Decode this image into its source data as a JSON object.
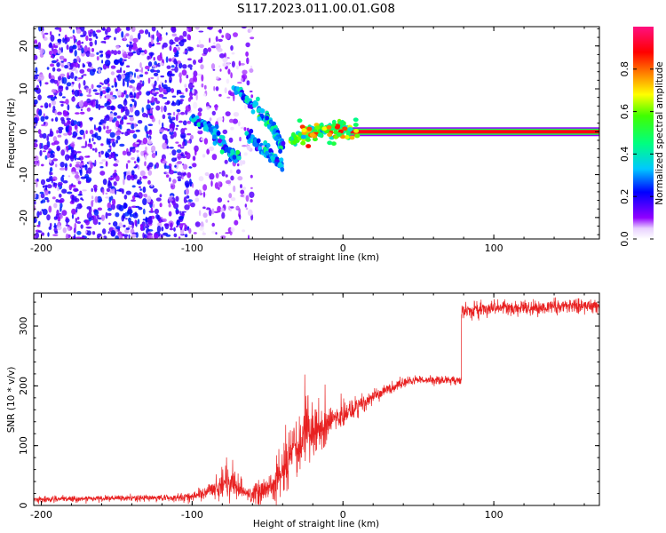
{
  "title": "S117.2023.011.00.01.G08",
  "colors": {
    "snr_line": "#e82020",
    "scatter": "#7f00ff",
    "frame": "#000000"
  },
  "chart_data": [
    {
      "type": "heatmap",
      "xlabel": "Height of straight line (km)",
      "ylabel": "Frequency (Hz)",
      "xlim": [
        -205,
        170
      ],
      "ylim": [
        -25,
        24.5
      ],
      "xticks": [
        -200,
        -100,
        0,
        100
      ],
      "yticks": [
        -20,
        -10,
        0,
        10,
        20
      ],
      "colorbar": {
        "label": "Normalized spectral amplitude",
        "range": [
          0,
          1
        ],
        "ticks": [
          0.0,
          0.2,
          0.4,
          0.6,
          0.8
        ],
        "colormap": "rainbow (white-violet to magenta)"
      },
      "features": [
        {
          "region": "noise scatter",
          "x_range": [
            -205,
            -100
          ],
          "freq_range": [
            -25,
            24.5
          ],
          "amplitude": [
            0.05,
            0.25
          ]
        },
        {
          "region": "sparse scatter",
          "x_range": [
            -100,
            -60
          ],
          "freq_range": [
            -25,
            24.5
          ],
          "amplitude": [
            0.02,
            0.15
          ]
        },
        {
          "region": "branch A (lower)",
          "points": [
            [
              -100,
              3
            ],
            [
              -85,
              0
            ],
            [
              -75,
              -5
            ],
            [
              -70,
              -6
            ]
          ],
          "amplitude": 0.3
        },
        {
          "region": "branch B (upper)",
          "points": [
            [
              -72,
              10
            ],
            [
              -55,
              5
            ],
            [
              -45,
              0
            ],
            [
              -40,
              -4
            ]
          ],
          "amplitude": 0.3
        },
        {
          "region": "branch C",
          "points": [
            [
              -62,
              -1
            ],
            [
              -50,
              -5
            ],
            [
              -40,
              -8
            ]
          ],
          "amplitude": 0.3
        },
        {
          "region": "converging trace",
          "points": [
            [
              -35,
              -2
            ],
            [
              -20,
              0
            ],
            [
              -5,
              1
            ],
            [
              5,
              0.5
            ]
          ],
          "amplitude": 0.5
        },
        {
          "region": "direct signal line",
          "x_range": [
            -30,
            170
          ],
          "freq": 0,
          "amplitude": 0.9
        }
      ]
    },
    {
      "type": "line",
      "xlabel": "Height of straight line (km)",
      "ylabel": "SNR (10 * v/v)",
      "xlim": [
        -205,
        170
      ],
      "ylim": [
        0,
        355
      ],
      "xticks": [
        -200,
        -100,
        0,
        100
      ],
      "yticks": [
        0,
        100,
        200,
        300
      ],
      "series": [
        {
          "x": [
            -205,
            -150,
            -110,
            -100,
            -90,
            -80,
            -75,
            -70,
            -60,
            -50,
            -40,
            -30,
            -25,
            -20,
            -10,
            0,
            10,
            20,
            30,
            40,
            50,
            60,
            70,
            78,
            79,
            90,
            100,
            120,
            140,
            160,
            170
          ],
          "y": [
            10,
            12,
            13,
            15,
            22,
            35,
            40,
            25,
            18,
            30,
            60,
            105,
            125,
            120,
            140,
            150,
            165,
            180,
            195,
            205,
            210,
            210,
            210,
            208,
            325,
            328,
            330,
            330,
            332,
            334,
            335
          ],
          "noise": [
            4,
            4,
            5,
            6,
            10,
            18,
            20,
            12,
            12,
            20,
            30,
            40,
            45,
            40,
            25,
            18,
            15,
            10,
            8,
            7,
            6,
            6,
            6,
            6,
            10,
            10,
            10,
            10,
            10,
            10,
            10
          ]
        }
      ]
    }
  ]
}
